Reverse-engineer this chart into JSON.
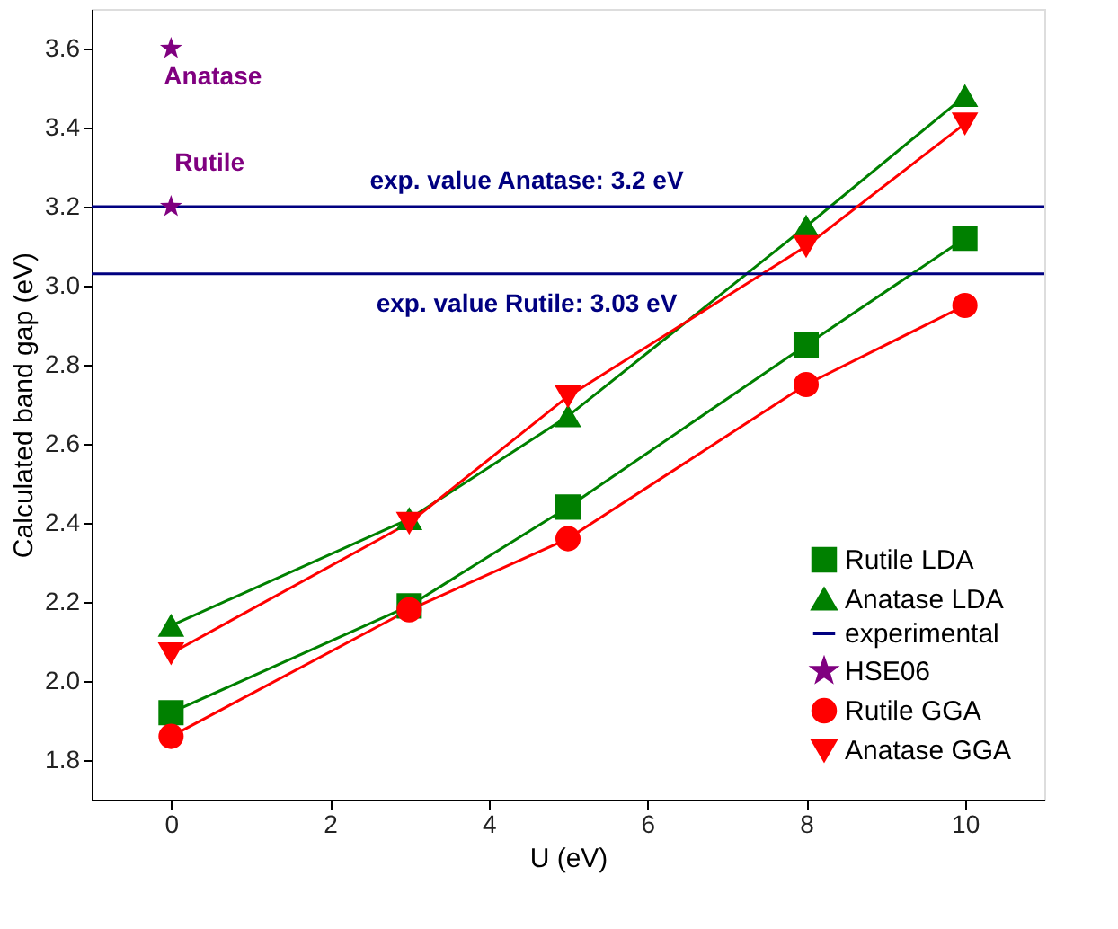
{
  "chart_data": {
    "type": "line",
    "xlabel": "U (eV)",
    "ylabel": "Calculated band gap (eV)",
    "x": [
      0,
      3,
      5,
      8,
      10
    ],
    "xlim": [
      -1,
      11
    ],
    "ylim": [
      1.7,
      3.7
    ],
    "xticks": [
      0,
      2,
      4,
      6,
      8,
      10
    ],
    "yticks": [
      1.8,
      {
        "value": 2,
        "label": "2.0"
      },
      2.2,
      2.4,
      2.6,
      2.8,
      {
        "value": 3,
        "label": "3.0"
      },
      3.2,
      3.4,
      3.6
    ],
    "grid": false,
    "legend": "bottom right",
    "series": [
      {
        "name": "Rutile LDA",
        "color": "#008000",
        "marker": "square",
        "values": [
          1.92,
          2.19,
          2.44,
          2.85,
          3.12
        ]
      },
      {
        "name": "Anatase LDA",
        "color": "#008000",
        "marker": "triangle",
        "values": [
          2.14,
          2.41,
          2.67,
          3.15,
          3.48
        ]
      },
      {
        "name": "experimental",
        "color": "#000080",
        "marker": "none",
        "x": [
          -1,
          11
        ],
        "values": [
          3.2,
          3.2
        ]
      },
      {
        "name": "HSE06",
        "type": "scatter",
        "color": "#800080",
        "marker": "star",
        "x": [
          0,
          0
        ],
        "values": [
          3.6,
          3.2
        ]
      },
      {
        "name": "Rutile GGA",
        "color": "#ff0000",
        "marker": "circle",
        "values": [
          1.86,
          2.18,
          2.36,
          2.75,
          2.95
        ]
      },
      {
        "name": "Anatase GGA",
        "color": "#ff0000",
        "marker": "triangle-down",
        "values": [
          2.07,
          2.4,
          2.72,
          3.1,
          3.41
        ]
      },
      {
        "color": "#000080",
        "marker": "none",
        "x": [
          -1,
          11
        ],
        "values": [
          3.03,
          3.03
        ]
      }
    ],
    "annotations": [
      "Anatase",
      "Rutile",
      "exp. value Anatase: 3.2 eV",
      "exp. value Rutile: 3.03 eV"
    ]
  }
}
